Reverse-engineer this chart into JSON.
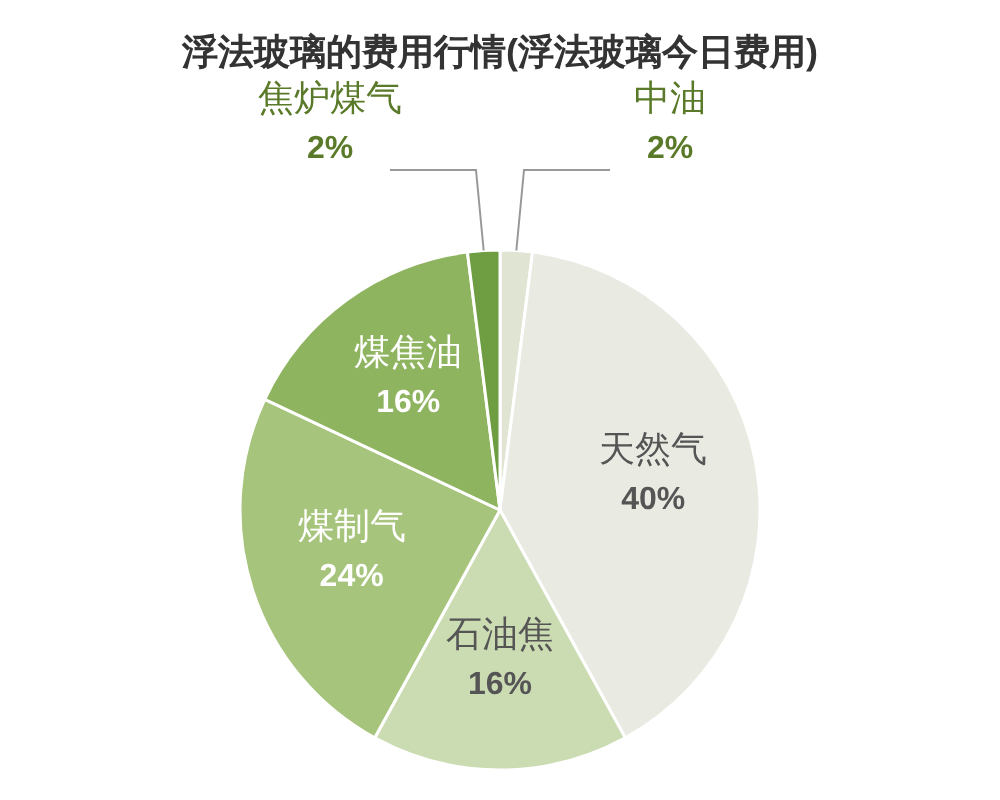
{
  "chart_data": {
    "type": "pie",
    "title": "浮法玻璃的费用行情(浮法玻璃今日费用)",
    "categories": [
      "中油",
      "天然气",
      "石油焦",
      "煤制气",
      "煤焦油",
      "焦炉煤气"
    ],
    "values": [
      2,
      40,
      16,
      24,
      16,
      2
    ],
    "value_labels": [
      "2%",
      "40%",
      "16%",
      "24%",
      "16%",
      "2%"
    ],
    "colors": [
      "#dfe5d2",
      "#e9ebe3",
      "#cbdcb3",
      "#a6c47c",
      "#8fb460",
      "#6f9d42"
    ]
  }
}
